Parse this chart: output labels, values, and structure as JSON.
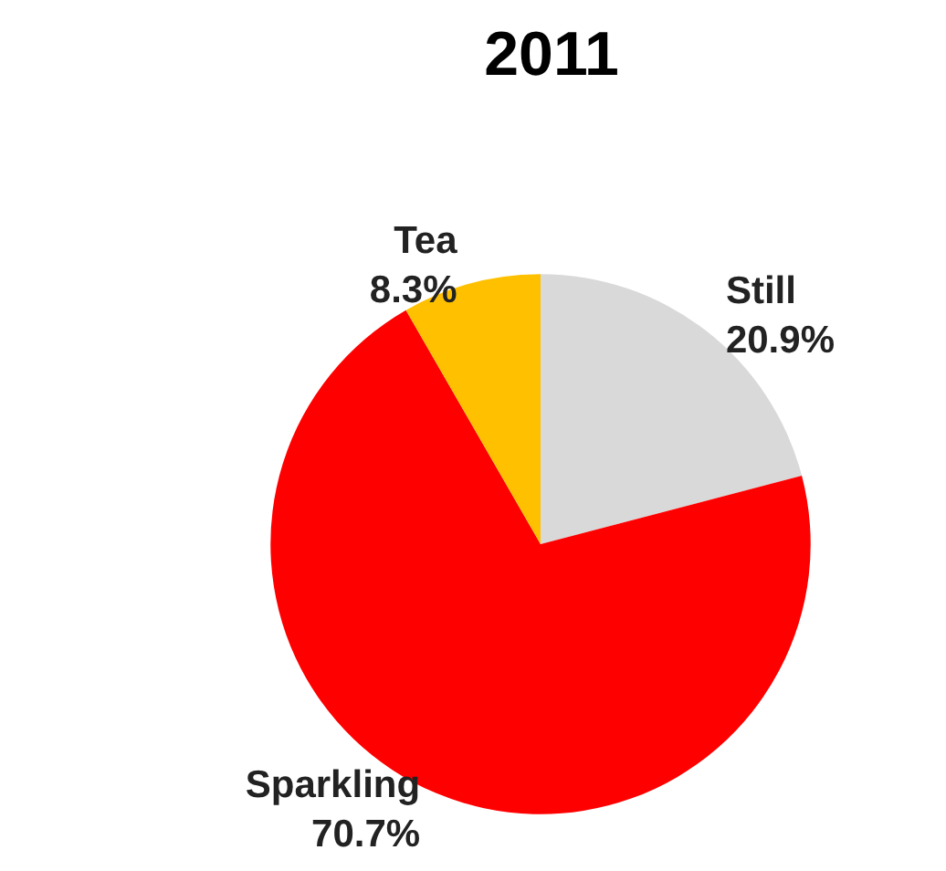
{
  "chart_data": {
    "type": "pie",
    "title": "2011",
    "categories": [
      "Still",
      "Sparkling",
      "Tea"
    ],
    "values": [
      20.9,
      70.7,
      8.3
    ],
    "value_labels": [
      "20.9%",
      "70.7%",
      "8.3%"
    ],
    "colors": [
      "#d9d9d9",
      "#ff0000",
      "#ffc000"
    ],
    "legend": false
  }
}
